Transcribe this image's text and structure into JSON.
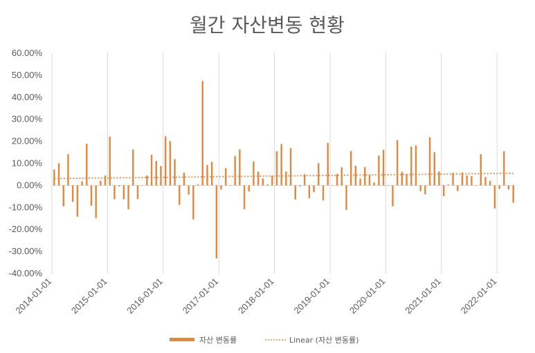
{
  "chart_data": {
    "type": "bar",
    "title": "월간 자산변동 현황",
    "xlabel": "",
    "ylabel": "",
    "ylim": [
      -0.4,
      0.6
    ],
    "yticks": [
      -0.4,
      -0.3,
      -0.2,
      -0.1,
      0.0,
      0.1,
      0.2,
      0.3,
      0.4,
      0.5,
      0.6
    ],
    "ytick_labels": [
      "-40.00%",
      "-30.00%",
      "-20.00%",
      "-10.00%",
      "0.00%",
      "10.00%",
      "20.00%",
      "30.00%",
      "40.00%",
      "50.00%",
      "60.00%"
    ],
    "xtick_labels": [
      "2014-01-01",
      "2015-01-01",
      "2016-01-01",
      "2017-01-01",
      "2018-01-01",
      "2019-01-01",
      "2020-01-01",
      "2021-01-01",
      "2022-01-01"
    ],
    "grid": "vertical",
    "legend_position": "bottom",
    "bar_color": "#E0883F",
    "trend_color": "#E0883F",
    "series": [
      {
        "name": "자산 변동률",
        "start": "2014-01",
        "values": [
          0.072,
          0.101,
          -0.095,
          0.142,
          -0.075,
          -0.142,
          0.018,
          0.189,
          -0.092,
          -0.148,
          0.021,
          0.045,
          0.221,
          -0.063,
          -0.005,
          -0.063,
          -0.108,
          0.163,
          -0.062,
          0.0,
          0.045,
          0.139,
          0.111,
          0.088,
          0.223,
          0.201,
          0.119,
          -0.088,
          0.058,
          -0.041,
          -0.154,
          0.005,
          0.474,
          0.093,
          0.107,
          -0.331,
          -0.019,
          0.078,
          0.0,
          0.134,
          0.163,
          -0.108,
          -0.027,
          0.109,
          0.063,
          0.032,
          0.005,
          0.044,
          0.155,
          0.188,
          0.063,
          0.169,
          -0.064,
          -0.005,
          0.051,
          -0.058,
          -0.031,
          0.101,
          -0.068,
          0.193,
          0.0,
          0.052,
          0.082,
          -0.111,
          0.156,
          0.089,
          0.031,
          0.083,
          0.048,
          0.013,
          0.135,
          0.162,
          0.0,
          -0.095,
          0.205,
          0.062,
          0.053,
          0.176,
          0.181,
          -0.026,
          -0.04,
          0.219,
          0.151,
          0.063,
          -0.049,
          0.004,
          0.057,
          -0.025,
          0.058,
          0.045,
          0.042,
          0.0,
          0.142,
          0.038,
          0.02,
          -0.104,
          -0.016,
          0.155,
          -0.018,
          -0.079
        ]
      }
    ],
    "trend": {
      "name": "Linear (자산 변동률)",
      "type": "linear",
      "start_value": 0.031,
      "end_value": 0.055
    }
  }
}
